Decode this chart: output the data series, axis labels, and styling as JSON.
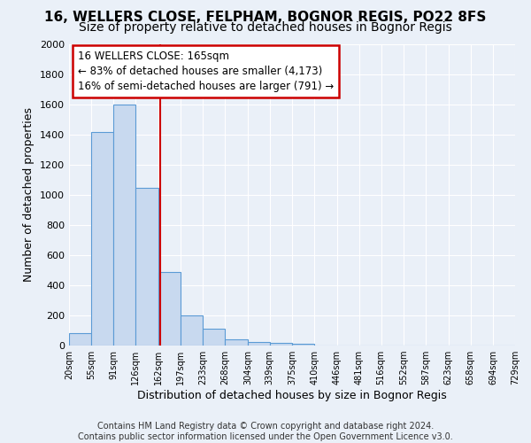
{
  "title": "16, WELLERS CLOSE, FELPHAM, BOGNOR REGIS, PO22 8FS",
  "subtitle": "Size of property relative to detached houses in Bognor Regis",
  "xlabel": "Distribution of detached houses by size in Bognor Regis",
  "ylabel": "Number of detached properties",
  "bin_edges": [
    20,
    55,
    91,
    126,
    162,
    197,
    233,
    268,
    304,
    339,
    375,
    410,
    446,
    481,
    516,
    552,
    587,
    623,
    658,
    694,
    729
  ],
  "bar_heights": [
    80,
    1420,
    1600,
    1050,
    490,
    200,
    110,
    40,
    25,
    15,
    10,
    0,
    0,
    0,
    0,
    0,
    0,
    0,
    0,
    0
  ],
  "bar_color": "#c8d9ef",
  "bar_edge_color": "#5b9bd5",
  "vline_x": 165,
  "vline_color": "#cc0000",
  "annotation_line1": "16 WELLERS CLOSE: 165sqm",
  "annotation_line2": "← 83% of detached houses are smaller (4,173)",
  "annotation_line3": "16% of semi-detached houses are larger (791) →",
  "annotation_box_edge_color": "#cc0000",
  "ylim": [
    0,
    2000
  ],
  "ytick_step": 200,
  "footer_text": "Contains HM Land Registry data © Crown copyright and database right 2024.\nContains public sector information licensed under the Open Government Licence v3.0.",
  "title_fontsize": 11,
  "subtitle_fontsize": 10,
  "xlabel_fontsize": 9,
  "ylabel_fontsize": 9,
  "annotation_fontsize": 8.5,
  "footer_fontsize": 7,
  "background_color": "#eaf0f8",
  "plot_bg_color": "#eaf0f8",
  "grid_color": "#ffffff"
}
